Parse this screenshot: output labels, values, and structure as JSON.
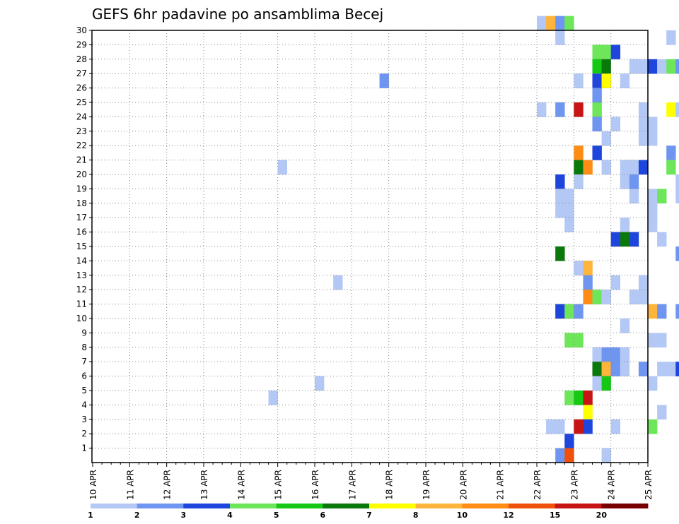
{
  "chart_data": {
    "type": "heatmap",
    "title": "GEFS 6hr padavine po ansamblima Becej",
    "xlabel": "",
    "ylabel": "",
    "x_tick_labels": [
      "10 APR",
      "11 APR",
      "12 APR",
      "13 APR",
      "14 APR",
      "15 APR",
      "16 APR",
      "17 APR",
      "18 APR",
      "19 APR",
      "20 APR",
      "21 APR",
      "22 APR",
      "23 APR",
      "24 APR",
      "25 APR"
    ],
    "y_tick_labels": [
      "1",
      "2",
      "3",
      "4",
      "5",
      "6",
      "7",
      "8",
      "9",
      "10",
      "11",
      "12",
      "13",
      "14",
      "15",
      "16",
      "17",
      "18",
      "19",
      "20",
      "21",
      "22",
      "23",
      "24",
      "25",
      "26",
      "27",
      "28",
      "29",
      "30"
    ],
    "x_unit": "6-hour step (day index 0 = 10 APR 00Z)",
    "ylim": [
      1,
      30
    ],
    "grid": true,
    "colorbar": {
      "labels": [
        "1",
        "2",
        "3",
        "4",
        "5",
        "6",
        "7",
        "8",
        "10",
        "12",
        "15",
        "20"
      ],
      "colors": [
        "#b4c8f5",
        "#6e96f0",
        "#1e46dc",
        "#6ee65a",
        "#14c814",
        "#0a780a",
        "#ffff00",
        "#ffb43c",
        "#ff8c14",
        "#f0500a",
        "#c81414",
        "#780000"
      ]
    },
    "cells": [
      [
        30,
        48,
        "#b4c8f5"
      ],
      [
        30,
        49,
        "#ffb43c"
      ],
      [
        30,
        50,
        "#6e96f0"
      ],
      [
        30,
        51,
        "#6ee65a"
      ],
      [
        30,
        70,
        "#b4c8f5"
      ],
      [
        30,
        113,
        "#6e96f0"
      ],
      [
        30,
        114,
        "#ff8c14"
      ],
      [
        30,
        115,
        "#6e96f0"
      ],
      [
        29,
        50,
        "#b4c8f5"
      ],
      [
        29,
        62,
        "#b4c8f5"
      ],
      [
        28,
        54,
        "#6ee65a"
      ],
      [
        28,
        55,
        "#6ee65a"
      ],
      [
        28,
        56,
        "#1e46dc"
      ],
      [
        28,
        78,
        "#b4c8f5"
      ],
      [
        28,
        95,
        "#6e96f0"
      ],
      [
        28,
        96,
        "#0a780a"
      ],
      [
        28,
        101,
        "#6e96f0"
      ],
      [
        28,
        107,
        "#6ee65a"
      ],
      [
        28,
        114,
        "#6e96f0"
      ],
      [
        28,
        115,
        "#b4c8f5"
      ],
      [
        27,
        54,
        "#14c814"
      ],
      [
        27,
        55,
        "#0a780a"
      ],
      [
        27,
        58,
        "#b4c8f5"
      ],
      [
        27,
        59,
        "#b4c8f5"
      ],
      [
        27,
        60,
        "#1e46dc"
      ],
      [
        27,
        61,
        "#b4c8f5"
      ],
      [
        27,
        62,
        "#6ee65a"
      ],
      [
        27,
        63,
        "#6e96f0"
      ],
      [
        26,
        31,
        "#6e96f0"
      ],
      [
        26,
        54,
        "#1e46dc"
      ],
      [
        26,
        55,
        "#ffff00"
      ],
      [
        26,
        57,
        "#b4c8f5"
      ],
      [
        26,
        52,
        "#b4c8f5"
      ],
      [
        26,
        66,
        "#b4c8f5"
      ],
      [
        26,
        67,
        "#b4c8f5"
      ],
      [
        26,
        68,
        "#b4c8f5"
      ],
      [
        26,
        67,
        "#1e46dc"
      ],
      [
        25,
        54,
        "#6e96f0"
      ],
      [
        24,
        48,
        "#b4c8f5"
      ],
      [
        24,
        50,
        "#6e96f0"
      ],
      [
        24,
        52,
        "#c81414"
      ],
      [
        24,
        54,
        "#6ee65a"
      ],
      [
        24,
        59,
        "#b4c8f5"
      ],
      [
        24,
        62,
        "#ffff00"
      ],
      [
        24,
        63,
        "#b4c8f5"
      ],
      [
        24,
        64,
        "#1e46dc"
      ],
      [
        24,
        65,
        "#1e46dc"
      ],
      [
        24,
        66,
        "#1e46dc"
      ],
      [
        24,
        67,
        "#1e46dc"
      ],
      [
        24,
        68,
        "#1e46dc"
      ],
      [
        24,
        71,
        "#b4c8f5"
      ],
      [
        24,
        72,
        "#b4c8f5"
      ],
      [
        24,
        78,
        "#b4c8f5"
      ],
      [
        24,
        80,
        "#6e96f0"
      ],
      [
        24,
        99,
        "#14c814"
      ],
      [
        24,
        100,
        "#1e46dc"
      ],
      [
        23,
        54,
        "#6e96f0"
      ],
      [
        23,
        56,
        "#b4c8f5"
      ],
      [
        23,
        59,
        "#b4c8f5"
      ],
      [
        23,
        60,
        "#b4c8f5"
      ],
      [
        22,
        55,
        "#b4c8f5"
      ],
      [
        22,
        59,
        "#b4c8f5"
      ],
      [
        22,
        60,
        "#b4c8f5"
      ],
      [
        22,
        73,
        "#6e96f0"
      ],
      [
        22,
        74,
        "#6e96f0"
      ],
      [
        22,
        93,
        "#b4c8f5"
      ],
      [
        22,
        94,
        "#b4c8f5"
      ],
      [
        22,
        101,
        "#6e96f0"
      ],
      [
        22,
        102,
        "#b4c8f5"
      ],
      [
        21,
        52,
        "#ff8c14"
      ],
      [
        21,
        54,
        "#1e46dc"
      ],
      [
        21,
        62,
        "#6e96f0"
      ],
      [
        21,
        68,
        "#b4c8f5"
      ],
      [
        20,
        20,
        "#b4c8f5"
      ],
      [
        20,
        52,
        "#0a780a"
      ],
      [
        20,
        53,
        "#ff8c14"
      ],
      [
        20,
        55,
        "#b4c8f5"
      ],
      [
        20,
        57,
        "#b4c8f5"
      ],
      [
        20,
        58,
        "#b4c8f5"
      ],
      [
        20,
        59,
        "#1e46dc"
      ],
      [
        20,
        62,
        "#6ee65a"
      ],
      [
        20,
        68,
        "#b4c8f5"
      ],
      [
        20,
        71,
        "#b4c8f5"
      ],
      [
        20,
        76,
        "#b4c8f5"
      ],
      [
        20,
        77,
        "#b4c8f5"
      ],
      [
        20,
        114,
        "#6ee65a"
      ],
      [
        20,
        115,
        "#ffb43c"
      ],
      [
        19,
        50,
        "#1e46dc"
      ],
      [
        19,
        52,
        "#b4c8f5"
      ],
      [
        19,
        57,
        "#b4c8f5"
      ],
      [
        19,
        58,
        "#6e96f0"
      ],
      [
        19,
        63,
        "#b4c8f5"
      ],
      [
        19,
        68,
        "#b4c8f5"
      ],
      [
        19,
        77,
        "#b4c8f5"
      ],
      [
        18,
        50,
        "#b4c8f5"
      ],
      [
        18,
        51,
        "#b4c8f5"
      ],
      [
        18,
        58,
        "#b4c8f5"
      ],
      [
        18,
        60,
        "#b4c8f5"
      ],
      [
        18,
        61,
        "#6ee65a"
      ],
      [
        18,
        63,
        "#b4c8f5"
      ],
      [
        18,
        64,
        "#6e96f0"
      ],
      [
        18,
        65,
        "#6e96f0"
      ],
      [
        18,
        68,
        "#6e96f0"
      ],
      [
        18,
        92,
        "#6e96f0"
      ],
      [
        18,
        106,
        "#6e96f0"
      ],
      [
        18,
        114,
        "#6e96f0"
      ],
      [
        18,
        115,
        "#1e46dc"
      ],
      [
        17,
        50,
        "#b4c8f5"
      ],
      [
        17,
        51,
        "#b4c8f5"
      ],
      [
        17,
        60,
        "#b4c8f5"
      ],
      [
        17,
        64,
        "#6e96f0"
      ],
      [
        17,
        65,
        "#6e96f0"
      ],
      [
        16,
        51,
        "#b4c8f5"
      ],
      [
        16,
        57,
        "#b4c8f5"
      ],
      [
        16,
        60,
        "#b4c8f5"
      ],
      [
        16,
        64,
        "#6e96f0"
      ],
      [
        15,
        56,
        "#1e46dc"
      ],
      [
        15,
        57,
        "#0a780a"
      ],
      [
        15,
        58,
        "#1e46dc"
      ],
      [
        15,
        61,
        "#b4c8f5"
      ],
      [
        15,
        64,
        "#b4c8f5"
      ],
      [
        15,
        65,
        "#1e46dc"
      ],
      [
        15,
        66,
        "#6ee65a"
      ],
      [
        15,
        67,
        "#6e96f0"
      ],
      [
        15,
        68,
        "#b4c8f5"
      ],
      [
        15,
        69,
        "#b4c8f5"
      ],
      [
        15,
        79,
        "#6e96f0"
      ],
      [
        15,
        80,
        "#b4c8f5"
      ],
      [
        14,
        50,
        "#0a780a"
      ],
      [
        14,
        63,
        "#6e96f0"
      ],
      [
        14,
        64,
        "#6e96f0"
      ],
      [
        14,
        68,
        "#b4c8f5"
      ],
      [
        14,
        69,
        "#14c814"
      ],
      [
        14,
        74,
        "#6e96f0"
      ],
      [
        13,
        52,
        "#b4c8f5"
      ],
      [
        13,
        53,
        "#ffb43c"
      ],
      [
        13,
        68,
        "#b4c8f5"
      ],
      [
        13,
        69,
        "#b4c8f5"
      ],
      [
        13,
        80,
        "#6e96f0"
      ],
      [
        13,
        104,
        "#6e96f0"
      ],
      [
        12,
        26,
        "#b4c8f5"
      ],
      [
        12,
        53,
        "#6e96f0"
      ],
      [
        12,
        56,
        "#b4c8f5"
      ],
      [
        12,
        59,
        "#b4c8f5"
      ],
      [
        12,
        64,
        "#b4c8f5"
      ],
      [
        12,
        65,
        "#b4c8f5"
      ],
      [
        12,
        68,
        "#b4c8f5"
      ],
      [
        11,
        53,
        "#ff8c14"
      ],
      [
        11,
        54,
        "#6ee65a"
      ],
      [
        11,
        55,
        "#b4c8f5"
      ],
      [
        11,
        58,
        "#b4c8f5"
      ],
      [
        11,
        59,
        "#b4c8f5"
      ],
      [
        11,
        74,
        "#1e46dc"
      ],
      [
        10,
        50,
        "#1e46dc"
      ],
      [
        10,
        51,
        "#6ee65a"
      ],
      [
        10,
        52,
        "#6e96f0"
      ],
      [
        10,
        60,
        "#ffb43c"
      ],
      [
        10,
        61,
        "#6e96f0"
      ],
      [
        10,
        63,
        "#6e96f0"
      ],
      [
        10,
        64,
        "#b4c8f5"
      ],
      [
        10,
        65,
        "#6e96f0"
      ],
      [
        10,
        66,
        "#1e46dc"
      ],
      [
        10,
        67,
        "#b4c8f5"
      ],
      [
        10,
        68,
        "#b4c8f5"
      ],
      [
        10,
        69,
        "#b4c8f5"
      ],
      [
        10,
        70,
        "#b4c8f5"
      ],
      [
        10,
        71,
        "#6e96f0"
      ],
      [
        10,
        80,
        "#6e96f0"
      ],
      [
        9,
        57,
        "#b4c8f5"
      ],
      [
        9,
        64,
        "#b4c8f5"
      ],
      [
        9,
        66,
        "#6e96f0"
      ],
      [
        9,
        68,
        "#6e96f0"
      ],
      [
        8,
        51,
        "#6ee65a"
      ],
      [
        8,
        52,
        "#6ee65a"
      ],
      [
        8,
        60,
        "#b4c8f5"
      ],
      [
        8,
        61,
        "#b4c8f5"
      ],
      [
        8,
        64,
        "#b4c8f5"
      ],
      [
        8,
        92,
        "#b4c8f5"
      ],
      [
        7,
        54,
        "#b4c8f5"
      ],
      [
        7,
        55,
        "#6e96f0"
      ],
      [
        7,
        56,
        "#6e96f0"
      ],
      [
        7,
        57,
        "#b4c8f5"
      ],
      [
        7,
        64,
        "#6ee65a"
      ],
      [
        7,
        65,
        "#6e96f0"
      ],
      [
        7,
        72,
        "#14c814"
      ],
      [
        7,
        73,
        "#0a780a"
      ],
      [
        7,
        93,
        "#b4c8f5"
      ],
      [
        7,
        101,
        "#b4c8f5"
      ],
      [
        6,
        54,
        "#0a780a"
      ],
      [
        6,
        55,
        "#ffb43c"
      ],
      [
        6,
        56,
        "#6e96f0"
      ],
      [
        6,
        57,
        "#b4c8f5"
      ],
      [
        6,
        59,
        "#6e96f0"
      ],
      [
        6,
        61,
        "#b4c8f5"
      ],
      [
        6,
        62,
        "#b4c8f5"
      ],
      [
        6,
        63,
        "#1e46dc"
      ],
      [
        6,
        64,
        "#b4c8f5"
      ],
      [
        6,
        105,
        "#b4c8f5"
      ],
      [
        5,
        24,
        "#b4c8f5"
      ],
      [
        5,
        54,
        "#b4c8f5"
      ],
      [
        5,
        55,
        "#14c814"
      ],
      [
        5,
        60,
        "#b4c8f5"
      ],
      [
        5,
        66,
        "#6e96f0"
      ],
      [
        5,
        80,
        "#6e96f0"
      ],
      [
        5,
        114,
        "#b4c8f5"
      ],
      [
        5,
        115,
        "#ffb43c"
      ],
      [
        5,
        116,
        "#b4c8f5"
      ],
      [
        4,
        19,
        "#b4c8f5"
      ],
      [
        4,
        51,
        "#6ee65a"
      ],
      [
        4,
        52,
        "#14c814"
      ],
      [
        4,
        53,
        "#c81414"
      ],
      [
        4,
        68,
        "#1e46dc"
      ],
      [
        4,
        69,
        "#1e46dc"
      ],
      [
        4,
        70,
        "#6e96f0"
      ],
      [
        4,
        80,
        "#6e96f0"
      ],
      [
        4,
        92,
        "#b4c8f5"
      ],
      [
        4,
        114,
        "#b4c8f5"
      ],
      [
        3,
        53,
        "#ffff00"
      ],
      [
        3,
        61,
        "#b4c8f5"
      ],
      [
        3,
        64,
        "#1e46dc"
      ],
      [
        3,
        65,
        "#1e46dc"
      ],
      [
        3,
        66,
        "#6e96f0"
      ],
      [
        3,
        67,
        "#b4c8f5"
      ],
      [
        3,
        71,
        "#b4c8f5"
      ],
      [
        3,
        106,
        "#b4c8f5"
      ],
      [
        3,
        115,
        "#b4c8f5"
      ],
      [
        2,
        49,
        "#b4c8f5"
      ],
      [
        2,
        50,
        "#b4c8f5"
      ],
      [
        2,
        52,
        "#c81414"
      ],
      [
        2,
        53,
        "#1e46dc"
      ],
      [
        2,
        56,
        "#b4c8f5"
      ],
      [
        2,
        60,
        "#6ee65a"
      ],
      [
        2,
        66,
        "#b4c8f5"
      ],
      [
        2,
        67,
        "#0a780a"
      ],
      [
        2,
        68,
        "#6e96f0"
      ],
      [
        2,
        79,
        "#b4c8f5"
      ],
      [
        2,
        80,
        "#6ee65a"
      ],
      [
        1,
        51,
        "#1e46dc"
      ],
      [
        1,
        73,
        "#b4c8f5"
      ],
      [
        1,
        109,
        "#14c814"
      ],
      [
        1,
        110,
        "#14c814"
      ],
      [
        1,
        111,
        "#0a780a"
      ],
      [
        0,
        50,
        "#6e96f0"
      ],
      [
        0,
        51,
        "#f0500a"
      ],
      [
        0,
        55,
        "#b4c8f5"
      ],
      [
        0,
        72,
        "#b4c8f5"
      ],
      [
        0,
        73,
        "#b4c8f5"
      ],
      [
        0,
        79,
        "#6e96f0"
      ]
    ]
  }
}
